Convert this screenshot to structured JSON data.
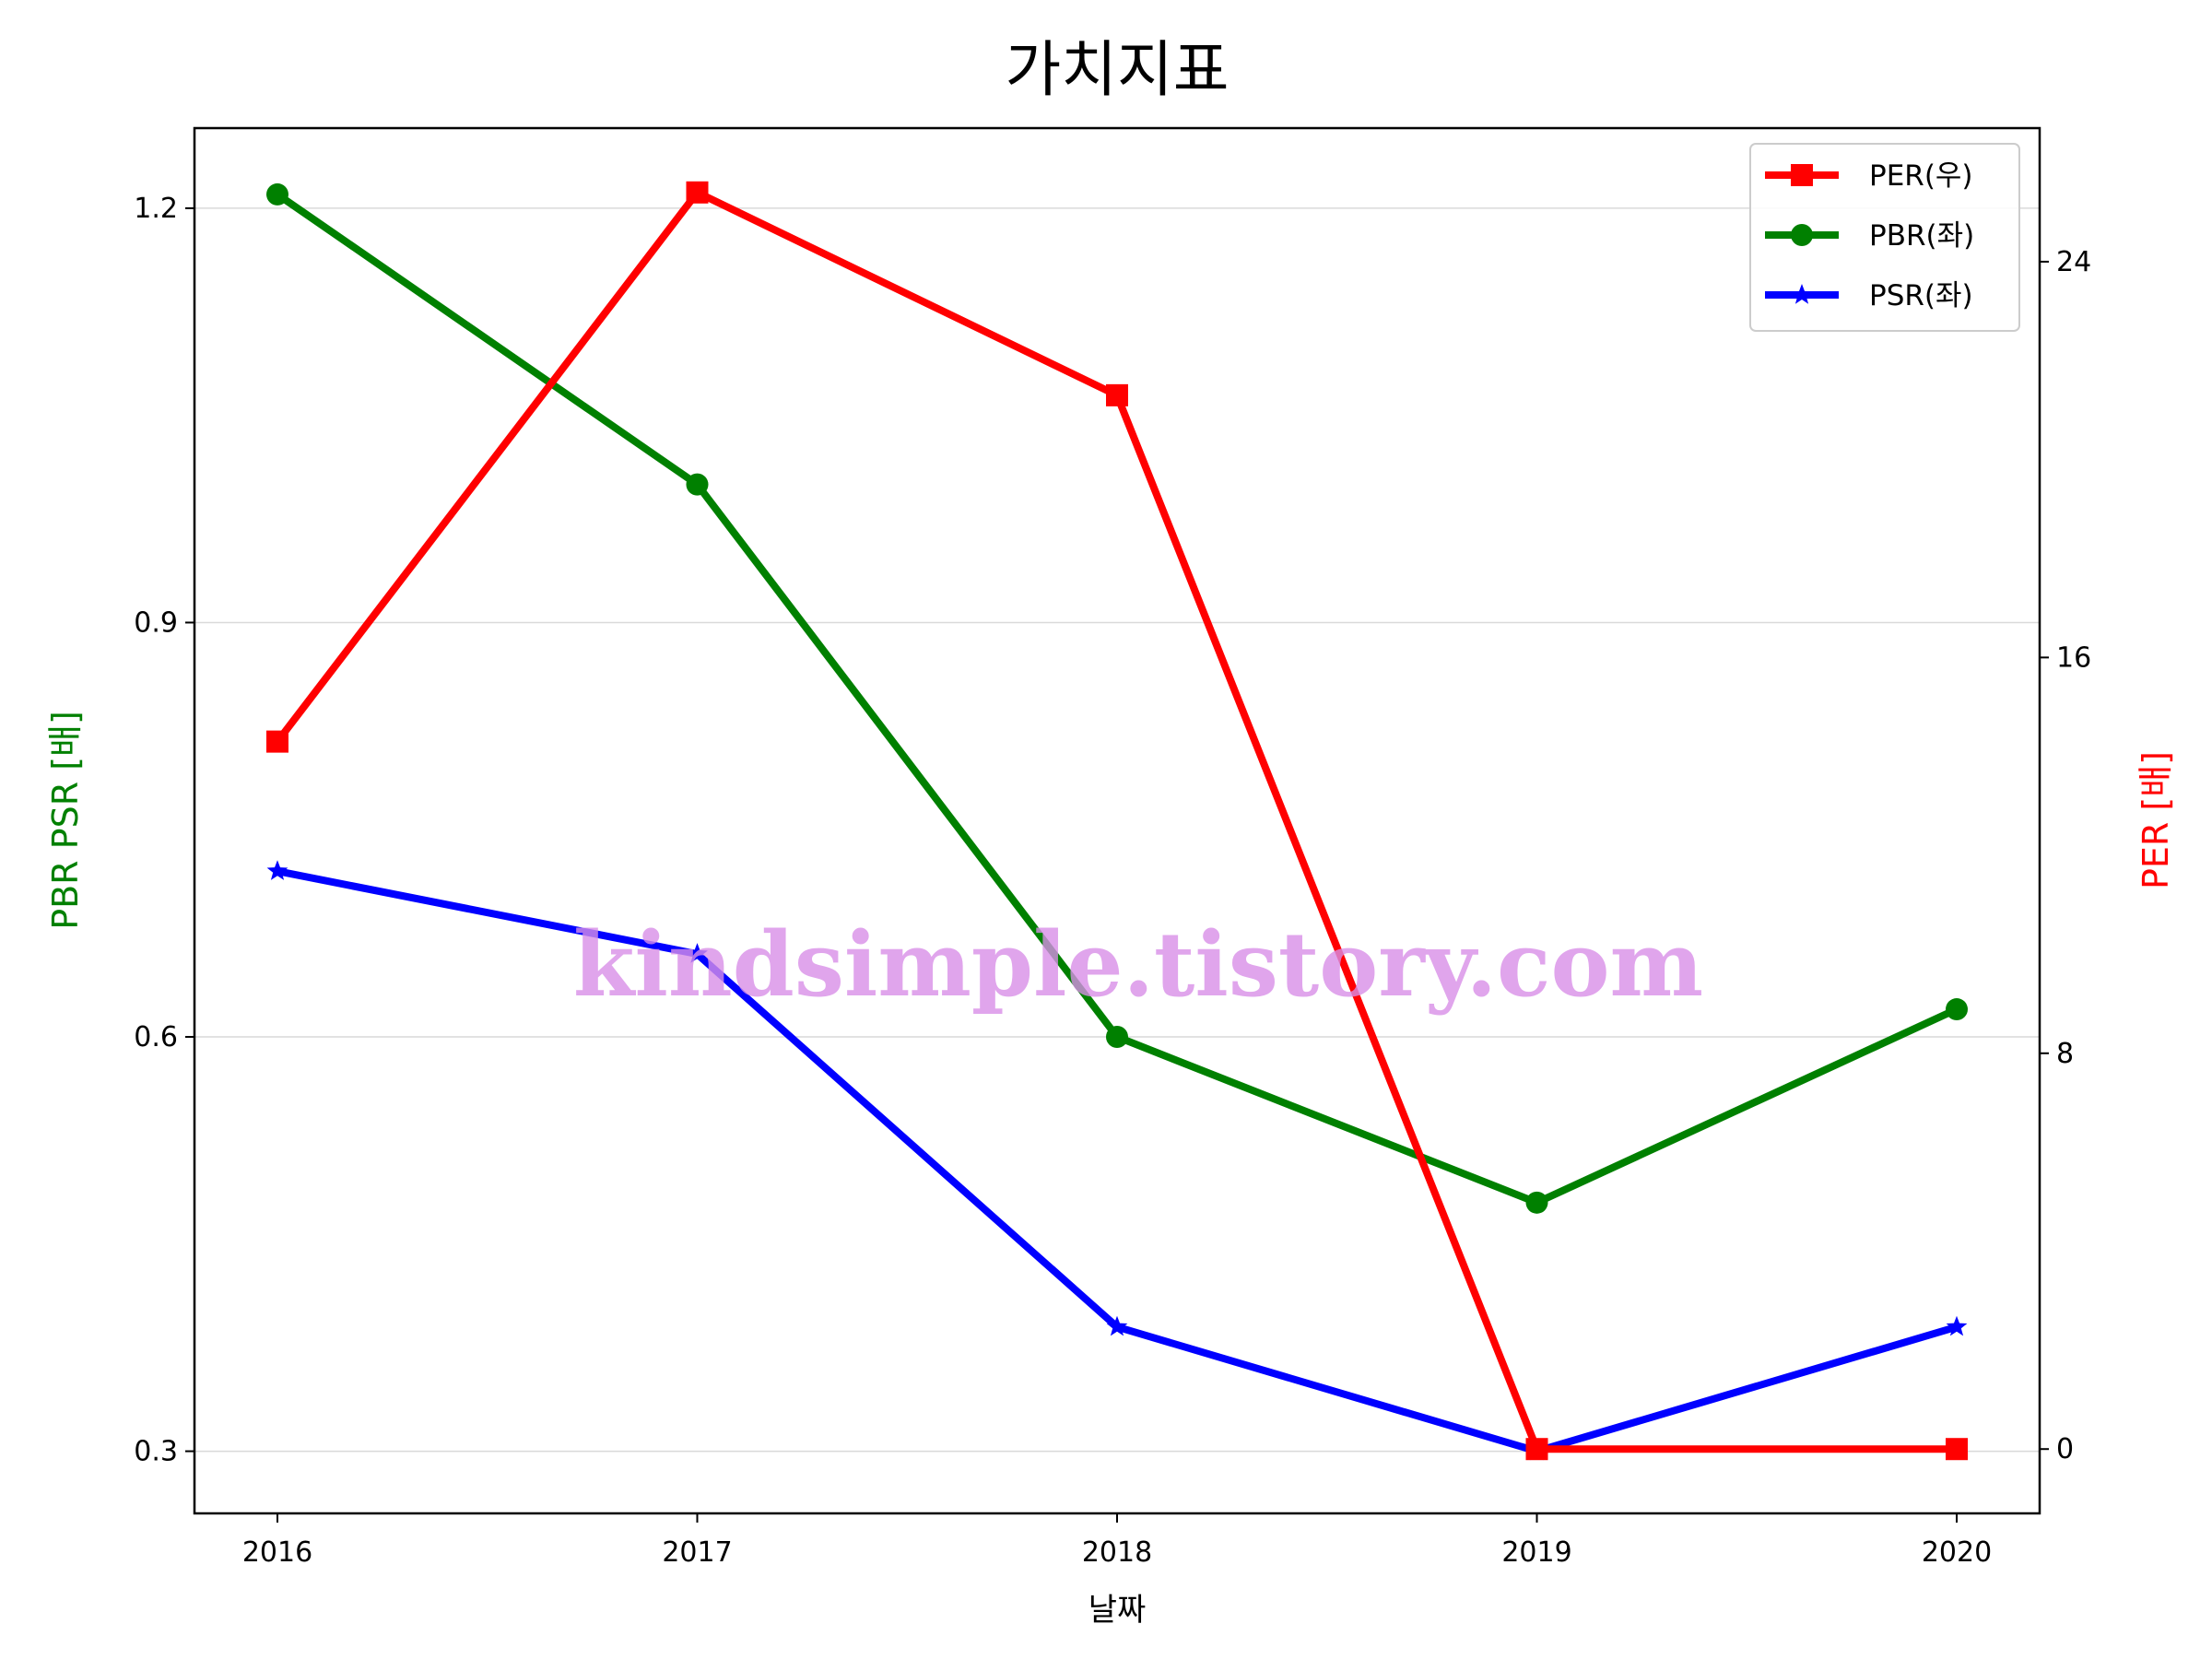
{
  "chart_data": {
    "type": "line",
    "title": "가치지표",
    "xlabel": "날짜",
    "ylabel_left": "PBR PSR [배]",
    "ylabel_right": "PER [배]",
    "categories": [
      "2016",
      "2017",
      "2018",
      "2019",
      "2020"
    ],
    "ylim_left": [
      0.255,
      1.258
    ],
    "ylim_right": [
      -1.3,
      26.7
    ],
    "yticks_left": [
      "0.3",
      "0.6",
      "0.9",
      "1.2"
    ],
    "yticks_right": [
      "0",
      "8",
      "16",
      "24"
    ],
    "grid": "horizontal",
    "legend_placement": "top-right",
    "series": [
      {
        "name": "PER(우)",
        "axis": "right",
        "color": "#ff0000",
        "marker": "square",
        "values": [
          14.3,
          25.4,
          21.3,
          0,
          0
        ]
      },
      {
        "name": "PBR(좌)",
        "axis": "left",
        "color": "#008000",
        "marker": "circle",
        "values": [
          1.21,
          1.0,
          0.6,
          0.48,
          0.62
        ]
      },
      {
        "name": "PSR(좌)",
        "axis": "left",
        "color": "#0000ff",
        "marker": "star",
        "values": [
          0.72,
          0.66,
          0.39,
          0.3,
          0.39
        ]
      }
    ],
    "watermark": "kindsimple.tistory.com"
  }
}
